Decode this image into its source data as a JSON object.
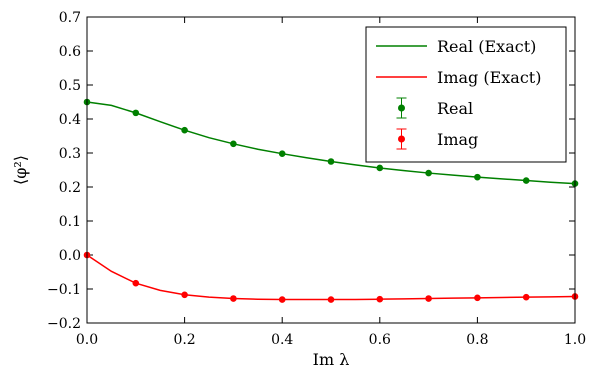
{
  "chart_data": {
    "type": "line",
    "xlabel": "Im λ",
    "ylabel": "⟨φ²⟩",
    "xlim": [
      0.0,
      1.0
    ],
    "ylim": [
      -0.2,
      0.7
    ],
    "x_ticks": [
      0.0,
      0.2,
      0.4,
      0.6,
      0.8,
      1.0
    ],
    "x_tick_labels": [
      "0.0",
      "0.2",
      "0.4",
      "0.6",
      "0.8",
      "1.0"
    ],
    "y_ticks": [
      -0.2,
      -0.1,
      0.0,
      0.1,
      0.2,
      0.3,
      0.4,
      0.5,
      0.6,
      0.7
    ],
    "y_tick_labels": [
      "−0.2",
      "−0.1",
      "0.0",
      "0.1",
      "0.2",
      "0.3",
      "0.4",
      "0.5",
      "0.6",
      "0.7"
    ],
    "grid": false,
    "legend_position": "top-right",
    "exact_series": [
      {
        "name": "Real (Exact)",
        "color": "#008000",
        "x": [
          0.0,
          0.05,
          0.1,
          0.15,
          0.2,
          0.25,
          0.3,
          0.35,
          0.4,
          0.45,
          0.5,
          0.55,
          0.6,
          0.65,
          0.7,
          0.75,
          0.8,
          0.85,
          0.9,
          0.95,
          1.0
        ],
        "y": [
          0.45,
          0.44,
          0.418,
          0.392,
          0.367,
          0.345,
          0.327,
          0.311,
          0.298,
          0.286,
          0.275,
          0.265,
          0.256,
          0.248,
          0.241,
          0.235,
          0.229,
          0.224,
          0.219,
          0.214,
          0.21
        ]
      },
      {
        "name": "Imag (Exact)",
        "color": "#ff0000",
        "x": [
          0.0,
          0.05,
          0.1,
          0.15,
          0.2,
          0.25,
          0.3,
          0.35,
          0.4,
          0.45,
          0.5,
          0.55,
          0.6,
          0.65,
          0.7,
          0.75,
          0.8,
          0.85,
          0.9,
          0.95,
          1.0
        ],
        "y": [
          0.0,
          -0.048,
          -0.083,
          -0.104,
          -0.117,
          -0.124,
          -0.128,
          -0.13,
          -0.131,
          -0.131,
          -0.131,
          -0.131,
          -0.13,
          -0.129,
          -0.128,
          -0.127,
          -0.126,
          -0.125,
          -0.124,
          -0.123,
          -0.122
        ]
      }
    ],
    "sample_series": [
      {
        "name": "Real",
        "color": "#008000",
        "x": [
          0.0,
          0.1,
          0.2,
          0.3,
          0.4,
          0.5,
          0.6,
          0.7,
          0.8,
          0.9,
          1.0
        ],
        "y": [
          0.45,
          0.418,
          0.367,
          0.327,
          0.298,
          0.275,
          0.256,
          0.241,
          0.229,
          0.219,
          0.21
        ]
      },
      {
        "name": "Imag",
        "color": "#ff0000",
        "x": [
          0.0,
          0.1,
          0.2,
          0.3,
          0.4,
          0.5,
          0.6,
          0.7,
          0.8,
          0.9,
          1.0
        ],
        "y": [
          0.0,
          -0.083,
          -0.117,
          -0.128,
          -0.131,
          -0.131,
          -0.13,
          -0.128,
          -0.126,
          -0.124,
          -0.122
        ]
      }
    ]
  }
}
